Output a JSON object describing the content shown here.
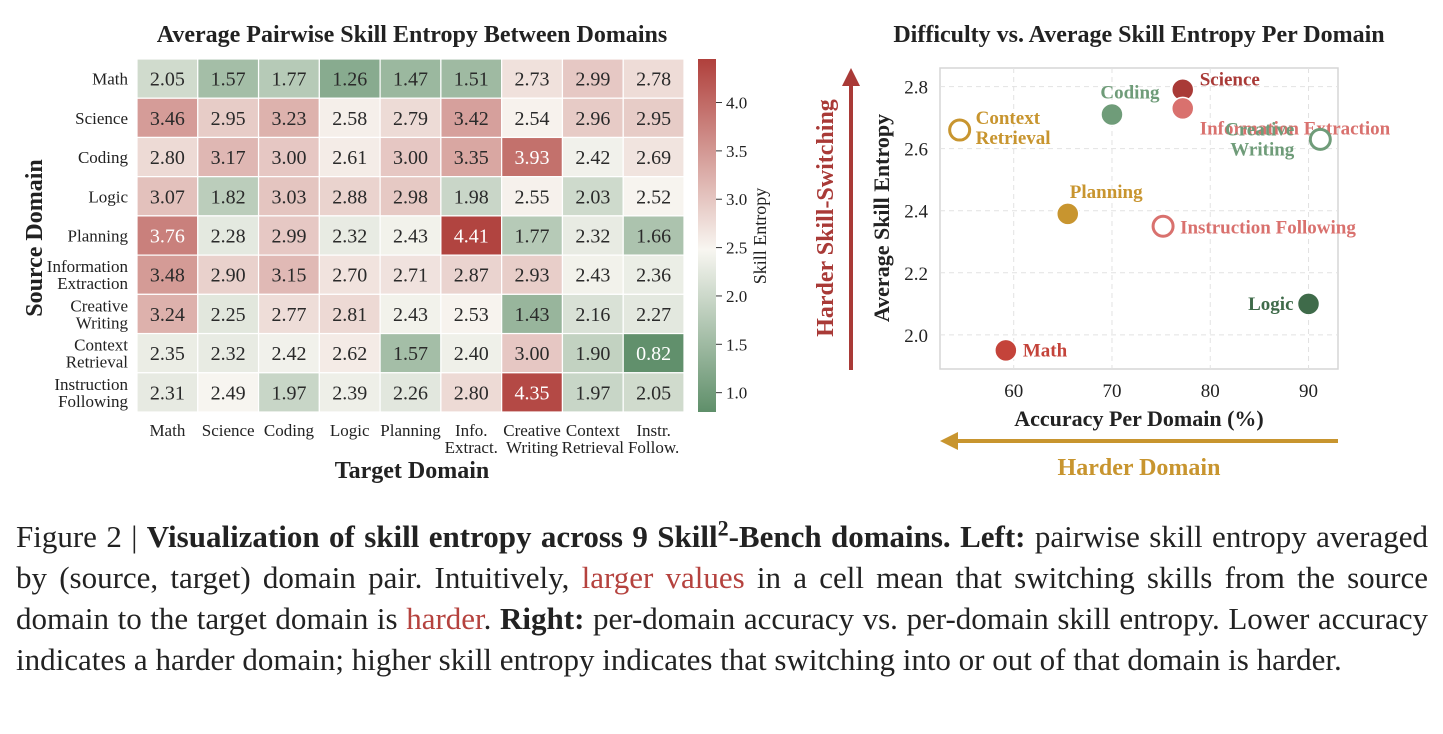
{
  "heatmap": {
    "title": "Average Pairwise Skill Entropy Between Domains",
    "ylabel": "Source Domain",
    "xlabel": "Target Domain",
    "colorbar_label": "Skill Entropy",
    "colorbar_ticks": [
      "1.0",
      "1.5",
      "2.0",
      "2.5",
      "3.0",
      "3.5",
      "4.0"
    ],
    "colors": {
      "low": "#5f8f6a",
      "mid": "#f8f6f1",
      "high": "#b0403c"
    }
  },
  "scatter": {
    "title": "Difficulty vs. Average Skill Entropy Per Domain",
    "xlabel": "Accuracy Per Domain (%)",
    "ylabel": "Average Skill Entropy",
    "x_ticks": [
      "60",
      "70",
      "80",
      "90"
    ],
    "y_ticks": [
      "2.0",
      "2.2",
      "2.4",
      "2.6",
      "2.8"
    ],
    "arrow_up_label": "Harder Skill-Switching",
    "arrow_left_label": "Harder Domain",
    "arrow_up_color": "#a93a37",
    "arrow_left_color": "#c8952f"
  },
  "chart_data": [
    {
      "type": "heatmap",
      "title": "Average Pairwise Skill Entropy Between Domains",
      "xlabel": "Target Domain",
      "ylabel": "Source Domain",
      "colorbar_label": "Skill Entropy",
      "clim": [
        0.8,
        4.45
      ],
      "rows": [
        "Math",
        "Science",
        "Coding",
        "Logic",
        "Planning",
        "Information\nExtraction",
        "Creative\nWriting",
        "Context\nRetrieval",
        "Instruction\nFollowing"
      ],
      "cols": [
        "Math",
        "Science",
        "Coding",
        "Logic",
        "Planning",
        "Info.\nExtract.",
        "Creative\nWriting",
        "Context\nRetrieval",
        "Instr.\nFollow."
      ],
      "values": [
        [
          2.05,
          1.57,
          1.77,
          1.26,
          1.47,
          1.51,
          2.73,
          2.99,
          2.78
        ],
        [
          3.46,
          2.95,
          3.23,
          2.58,
          2.79,
          3.42,
          2.54,
          2.96,
          2.95
        ],
        [
          2.8,
          3.17,
          3.0,
          2.61,
          3.0,
          3.35,
          3.93,
          2.42,
          2.69
        ],
        [
          3.07,
          1.82,
          3.03,
          2.88,
          2.98,
          1.98,
          2.55,
          2.03,
          2.52
        ],
        [
          3.76,
          2.28,
          2.99,
          2.32,
          2.43,
          4.41,
          1.77,
          2.32,
          1.66
        ],
        [
          3.48,
          2.9,
          3.15,
          2.7,
          2.71,
          2.87,
          2.93,
          2.43,
          2.36
        ],
        [
          3.24,
          2.25,
          2.77,
          2.81,
          2.43,
          2.53,
          1.43,
          2.16,
          2.27
        ],
        [
          2.35,
          2.32,
          2.42,
          2.62,
          1.57,
          2.4,
          3.0,
          1.9,
          0.82
        ],
        [
          2.31,
          2.49,
          1.97,
          2.39,
          2.26,
          2.8,
          4.35,
          1.97,
          2.05
        ]
      ]
    },
    {
      "type": "scatter",
      "title": "Difficulty vs. Average Skill Entropy Per Domain",
      "xlabel": "Accuracy Per Domain (%)",
      "ylabel": "Average Skill Entropy",
      "xlim": [
        52.5,
        93
      ],
      "ylim": [
        1.89,
        2.86
      ],
      "grid": true,
      "points": [
        {
          "name": "Science",
          "x": 77.2,
          "y": 2.79,
          "color": "#a93a37",
          "filled": true
        },
        {
          "name": "Information Extraction",
          "x": 77.2,
          "y": 2.73,
          "color": "#d9716e",
          "filled": true
        },
        {
          "name": "Coding",
          "x": 70.0,
          "y": 2.71,
          "color": "#6f9c79",
          "filled": true
        },
        {
          "name": "Context\nRetrieval",
          "x": 54.5,
          "y": 2.66,
          "color": "#c8952f",
          "filled": false
        },
        {
          "name": "Creative\nWriting",
          "x": 91.2,
          "y": 2.63,
          "color": "#6f9c79",
          "filled": false
        },
        {
          "name": "Planning",
          "x": 65.5,
          "y": 2.39,
          "color": "#c8952f",
          "filled": true
        },
        {
          "name": "Instruction Following",
          "x": 75.2,
          "y": 2.35,
          "color": "#d9716e",
          "filled": false
        },
        {
          "name": "Logic",
          "x": 90.0,
          "y": 2.1,
          "color": "#3f6b4a",
          "filled": true
        },
        {
          "name": "Math",
          "x": 59.2,
          "y": 1.95,
          "color": "#c4433a",
          "filled": true
        }
      ]
    }
  ],
  "caption": {
    "fig_label": "Figure 2 | ",
    "bold_title_a": "Visualization of skill entropy across 9 Skill",
    "superscript": "2",
    "bold_title_b": "-Bench domains.",
    "left_label": " Left:",
    "t1": " pairwise skill entropy averaged by (source, target) domain pair. Intuitively, ",
    "hl1": "larger values",
    "t2": " in a cell mean that switching skills from the source domain to the target domain is ",
    "hl2": "harder",
    "t3": ". ",
    "right_label": "Right:",
    "t4": " per-domain accuracy vs. per-domain skill entropy. Lower accuracy indicates a harder domain; higher skill entropy indicates that switching into or out of that domain is harder."
  }
}
